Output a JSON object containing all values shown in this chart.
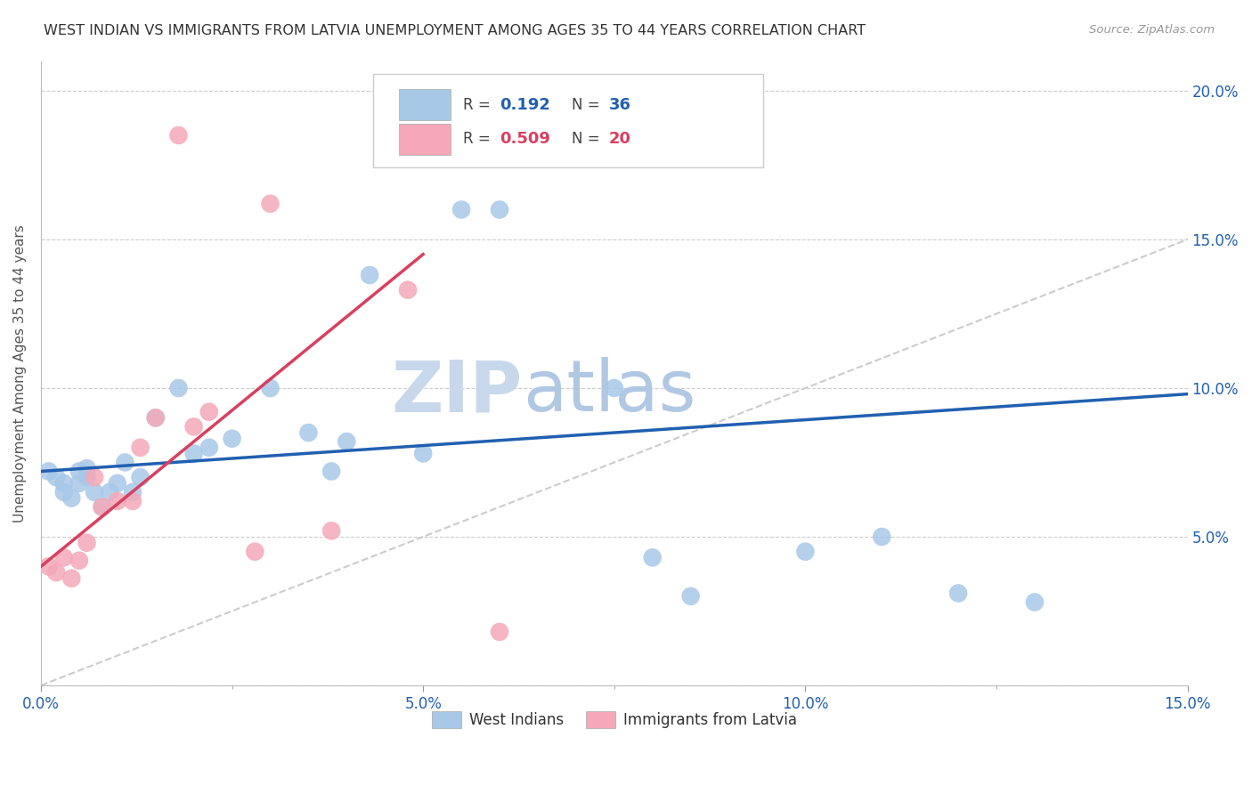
{
  "title": "WEST INDIAN VS IMMIGRANTS FROM LATVIA UNEMPLOYMENT AMONG AGES 35 TO 44 YEARS CORRELATION CHART",
  "source": "Source: ZipAtlas.com",
  "ylabel": "Unemployment Among Ages 35 to 44 years",
  "xlim": [
    0.0,
    0.15
  ],
  "ylim": [
    0.0,
    0.21
  ],
  "xticks": [
    0.0,
    0.05,
    0.1,
    0.15
  ],
  "xticklabels": [
    "0.0%",
    "5.0%",
    "10.0%",
    "15.0%"
  ],
  "yticks": [
    0.0,
    0.05,
    0.1,
    0.15,
    0.2
  ],
  "yticklabels": [
    "",
    "5.0%",
    "10.0%",
    "15.0%",
    "20.0%"
  ],
  "west_indians_R": "0.192",
  "west_indians_N": "36",
  "latvia_R": "0.509",
  "latvia_N": "20",
  "blue_scatter_color": "#a8c8e8",
  "pink_scatter_color": "#f4a8b8",
  "blue_line_color": "#2060b0",
  "pink_line_color": "#d84060",
  "diagonal_color": "#cccccc",
  "grid_color": "#cccccc",
  "west_indians_x": [
    0.001,
    0.002,
    0.003,
    0.003,
    0.004,
    0.005,
    0.005,
    0.006,
    0.006,
    0.007,
    0.008,
    0.009,
    0.01,
    0.011,
    0.012,
    0.013,
    0.015,
    0.018,
    0.02,
    0.022,
    0.025,
    0.03,
    0.035,
    0.038,
    0.04,
    0.043,
    0.05,
    0.055,
    0.06,
    0.075,
    0.08,
    0.085,
    0.1,
    0.11,
    0.12,
    0.13
  ],
  "west_indians_y": [
    0.072,
    0.07,
    0.065,
    0.068,
    0.063,
    0.072,
    0.068,
    0.07,
    0.073,
    0.065,
    0.06,
    0.065,
    0.068,
    0.075,
    0.065,
    0.07,
    0.09,
    0.1,
    0.078,
    0.08,
    0.083,
    0.1,
    0.085,
    0.072,
    0.082,
    0.138,
    0.078,
    0.16,
    0.16,
    0.1,
    0.043,
    0.03,
    0.045,
    0.05,
    0.031,
    0.028
  ],
  "latvia_x": [
    0.001,
    0.002,
    0.003,
    0.004,
    0.005,
    0.006,
    0.007,
    0.008,
    0.01,
    0.012,
    0.013,
    0.015,
    0.018,
    0.02,
    0.022,
    0.028,
    0.03,
    0.038,
    0.048,
    0.06
  ],
  "latvia_y": [
    0.04,
    0.038,
    0.043,
    0.036,
    0.042,
    0.048,
    0.07,
    0.06,
    0.062,
    0.062,
    0.08,
    0.09,
    0.185,
    0.087,
    0.092,
    0.045,
    0.162,
    0.052,
    0.133,
    0.018
  ],
  "watermark_zip": "ZIP",
  "watermark_atlas": "atlas",
  "watermark_color": "#c8d8ec"
}
